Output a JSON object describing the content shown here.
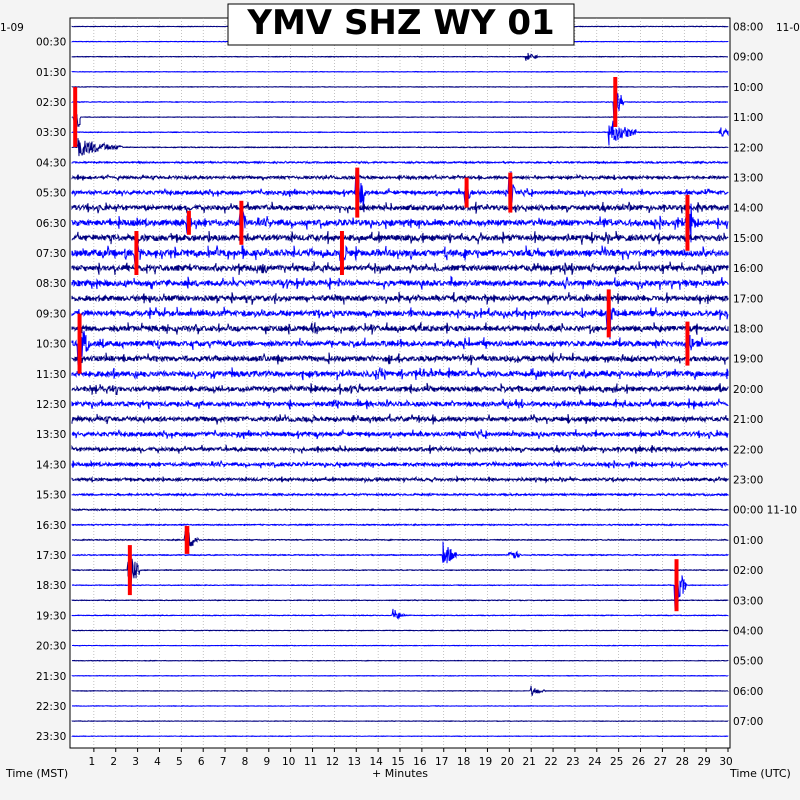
{
  "chart_data": {
    "type": "line",
    "title": "YMV SHZ WY 01",
    "station": "YMV",
    "channel": "SHZ",
    "network": "WY",
    "location": "01",
    "left_date_label": "1-09",
    "right_date_label": "11-0",
    "utc_next_date_label": "11-10",
    "xlabel": "+ Minutes",
    "left_axis_label": "Time (MST)",
    "right_axis_label": "Time (UTC)",
    "xlim": [
      0,
      30
    ],
    "x_ticks": [
      "1",
      "2",
      "3",
      "4",
      "5",
      "6",
      "7",
      "8",
      "9",
      "10",
      "11",
      "12",
      "13",
      "14",
      "15",
      "16",
      "17",
      "18",
      "19",
      "20",
      "21",
      "22",
      "23",
      "24",
      "25",
      "26",
      "27",
      "28",
      "29",
      "30"
    ],
    "left_time_labels": [
      "00:30",
      "01:30",
      "02:30",
      "03:30",
      "04:30",
      "05:30",
      "06:30",
      "07:30",
      "08:30",
      "09:30",
      "10:30",
      "11:30",
      "12:30",
      "13:30",
      "14:30",
      "15:30",
      "16:30",
      "17:30",
      "18:30",
      "19:30",
      "20:30",
      "21:30",
      "22:30",
      "23:30"
    ],
    "right_time_labels": [
      "08:00",
      "09:00",
      "10:00",
      "11:00",
      "12:00",
      "13:00",
      "14:00",
      "15:00",
      "16:00",
      "17:00",
      "18:00",
      "19:00",
      "20:00",
      "21:00",
      "22:00",
      "23:00",
      "00:00",
      "01:00",
      "02:00",
      "03:00",
      "04:00",
      "05:00",
      "06:00",
      "07:00"
    ],
    "trace_count": 48,
    "trace_colors": [
      "#000080",
      "#0000ff"
    ],
    "clip_color": "#ff0000",
    "trace_activity": [
      0.2,
      0.2,
      0.25,
      0.2,
      0.2,
      0.3,
      0.2,
      0.3,
      0.35,
      0.7,
      1.2,
      1.8,
      2.4,
      2.8,
      2.8,
      3.0,
      2.8,
      2.7,
      2.6,
      2.6,
      2.5,
      2.6,
      2.6,
      2.6,
      2.4,
      2.2,
      2.2,
      2.0,
      1.8,
      1.6,
      1.2,
      0.8,
      0.6,
      0.5,
      0.45,
      0.45,
      0.35,
      0.3,
      0.3,
      0.3,
      0.25,
      0.2,
      0.2,
      0.2,
      0.2,
      0.2,
      0.2,
      0.2
    ],
    "events": [
      {
        "trace": 6,
        "minute": 0.1,
        "amplitude": 30,
        "duration": 0.3,
        "clipped": true
      },
      {
        "trace": 8,
        "minute": 0.3,
        "amplitude": 10,
        "duration": 2.0,
        "clipped": false
      },
      {
        "trace": 2,
        "minute": 20.8,
        "amplitude": 5,
        "duration": 0.5,
        "clipped": false
      },
      {
        "trace": 5,
        "minute": 24.8,
        "amplitude": 25,
        "duration": 0.4,
        "clipped": true
      },
      {
        "trace": 7,
        "minute": 24.6,
        "amplitude": 14,
        "duration": 1.2,
        "clipped": false
      },
      {
        "trace": 7,
        "minute": 29.6,
        "amplitude": 6,
        "duration": 1.0,
        "clipped": false
      },
      {
        "trace": 11,
        "minute": 13.0,
        "amplitude": 25,
        "duration": 0.4,
        "clipped": true
      },
      {
        "trace": 11,
        "minute": 18.0,
        "amplitude": 15,
        "duration": 0.3,
        "clipped": true
      },
      {
        "trace": 11,
        "minute": 20.0,
        "amplitude": 20,
        "duration": 0.3,
        "clipped": true
      },
      {
        "trace": 13,
        "minute": 5.3,
        "amplitude": 12,
        "duration": 0.3,
        "clipped": true
      },
      {
        "trace": 13,
        "minute": 7.7,
        "amplitude": 22,
        "duration": 0.3,
        "clipped": true
      },
      {
        "trace": 13,
        "minute": 28.1,
        "amplitude": 28,
        "duration": 0.4,
        "clipped": true
      },
      {
        "trace": 15,
        "minute": 2.9,
        "amplitude": 22,
        "duration": 0.3,
        "clipped": true
      },
      {
        "trace": 15,
        "minute": 12.3,
        "amplitude": 22,
        "duration": 0.3,
        "clipped": true
      },
      {
        "trace": 19,
        "minute": 24.5,
        "amplitude": 24,
        "duration": 0.3,
        "clipped": true
      },
      {
        "trace": 21,
        "minute": 0.3,
        "amplitude": 30,
        "duration": 0.5,
        "clipped": true
      },
      {
        "trace": 21,
        "minute": 28.1,
        "amplitude": 22,
        "duration": 0.3,
        "clipped": true
      },
      {
        "trace": 34,
        "minute": 5.2,
        "amplitude": 14,
        "duration": 0.6,
        "clipped": true
      },
      {
        "trace": 35,
        "minute": 17.0,
        "amplitude": 14,
        "duration": 0.6,
        "clipped": false
      },
      {
        "trace": 35,
        "minute": 20.0,
        "amplitude": 10,
        "duration": 0.5,
        "clipped": false
      },
      {
        "trace": 36,
        "minute": 2.6,
        "amplitude": 25,
        "duration": 0.5,
        "clipped": true
      },
      {
        "trace": 37,
        "minute": 27.6,
        "amplitude": 26,
        "duration": 0.5,
        "clipped": true
      },
      {
        "trace": 39,
        "minute": 14.7,
        "amplitude": 7,
        "duration": 0.5,
        "clipped": false
      },
      {
        "trace": 44,
        "minute": 21.0,
        "amplitude": 6,
        "duration": 0.6,
        "clipped": false
      }
    ]
  }
}
